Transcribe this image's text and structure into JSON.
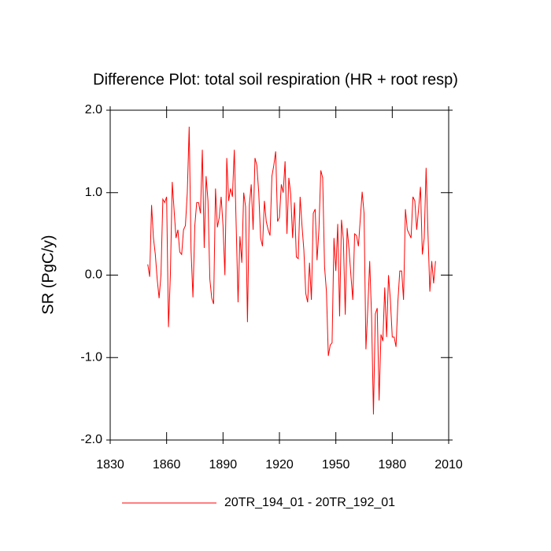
{
  "chart_data": {
    "type": "line",
    "title": "Difference Plot: total soil respiration (HR + root resp)",
    "y_label": "SR  (PgC/y)",
    "x": [
      1850,
      1851,
      1852,
      1853,
      1854,
      1855,
      1856,
      1857,
      1858,
      1859,
      1860,
      1861,
      1862,
      1863,
      1864,
      1865,
      1866,
      1867,
      1868,
      1869,
      1870,
      1871,
      1872,
      1873,
      1874,
      1875,
      1876,
      1877,
      1878,
      1879,
      1880,
      1881,
      1882,
      1883,
      1884,
      1885,
      1886,
      1887,
      1888,
      1889,
      1890,
      1891,
      1892,
      1893,
      1894,
      1895,
      1896,
      1897,
      1898,
      1899,
      1900,
      1901,
      1902,
      1903,
      1904,
      1905,
      1906,
      1907,
      1908,
      1909,
      1910,
      1911,
      1912,
      1913,
      1914,
      1915,
      1916,
      1917,
      1918,
      1919,
      1920,
      1921,
      1922,
      1923,
      1924,
      1925,
      1926,
      1927,
      1928,
      1929,
      1930,
      1931,
      1932,
      1933,
      1934,
      1935,
      1936,
      1937,
      1938,
      1939,
      1940,
      1941,
      1942,
      1943,
      1944,
      1945,
      1946,
      1947,
      1948,
      1949,
      1950,
      1951,
      1952,
      1953,
      1954,
      1955,
      1956,
      1957,
      1958,
      1959,
      1960,
      1961,
      1962,
      1963,
      1964,
      1965,
      1966,
      1967,
      1968,
      1969,
      1970,
      1971,
      1972,
      1973,
      1974,
      1975,
      1976,
      1977,
      1978,
      1979,
      1980,
      1981,
      1982,
      1983,
      1984,
      1985,
      1986,
      1987,
      1988,
      1989,
      1990,
      1991,
      1992,
      1993,
      1994,
      1995,
      1996,
      1997,
      1998,
      1999,
      2000,
      2001,
      2002,
      2003
    ],
    "series": [
      {
        "name": "20TR_194_01 - 20TR_192_01",
        "color": "#ff0000",
        "values": [
          0.13,
          -0.02,
          0.85,
          0.45,
          0.25,
          -0.05,
          -0.28,
          0.0,
          0.92,
          0.88,
          0.95,
          -0.63,
          0.0,
          1.13,
          0.78,
          0.45,
          0.55,
          0.28,
          0.25,
          0.55,
          0.6,
          1.0,
          1.8,
          0.3,
          -0.27,
          0.6,
          0.88,
          0.88,
          0.75,
          1.52,
          0.33,
          1.2,
          0.9,
          -0.05,
          -0.28,
          -0.35,
          1.05,
          0.58,
          0.7,
          0.95,
          0.6,
          0.0,
          1.42,
          0.9,
          1.05,
          0.95,
          1.52,
          0.6,
          -0.33,
          0.47,
          0.15,
          1.0,
          0.83,
          -0.57,
          0.85,
          1.1,
          0.55,
          1.42,
          1.33,
          1.0,
          0.45,
          0.35,
          0.9,
          0.65,
          0.55,
          0.48,
          1.2,
          1.33,
          1.5,
          0.65,
          0.7,
          1.1,
          1.0,
          1.38,
          0.5,
          1.18,
          0.98,
          0.45,
          0.88,
          0.22,
          0.2,
          0.95,
          0.6,
          0.3,
          -0.22,
          -0.33,
          0.15,
          -0.3,
          0.75,
          0.8,
          0.18,
          0.55,
          1.27,
          1.18,
          0.1,
          -0.2,
          -0.98,
          -0.85,
          -0.82,
          0.45,
          0.05,
          0.62,
          -0.5,
          0.67,
          0.43,
          -0.48,
          0.57,
          0.32,
          0.0,
          -0.3,
          0.5,
          0.48,
          0.35,
          0.68,
          1.01,
          0.75,
          -0.9,
          -0.4,
          0.17,
          -0.5,
          -1.69,
          -0.47,
          -0.4,
          -1.52,
          -0.72,
          -0.8,
          -0.15,
          -0.75,
          0.0,
          -0.3,
          -0.75,
          -0.75,
          -0.87,
          -0.32,
          0.05,
          0.05,
          -0.3,
          0.8,
          0.55,
          0.5,
          0.45,
          0.95,
          0.9,
          0.55,
          0.8,
          1.07,
          0.25,
          0.45,
          1.3,
          0.5,
          -0.2,
          0.17,
          -0.1,
          0.17
        ]
      }
    ],
    "xlim": [
      1830,
      2010
    ],
    "xticks": [
      1830,
      1860,
      1890,
      1920,
      1950,
      1980,
      2010
    ],
    "ylim": [
      -2,
      2
    ],
    "yticks": [
      {
        "value": -2,
        "label": "-2.0"
      },
      {
        "value": -1,
        "label": "-1.0"
      },
      {
        "value": 0,
        "label": "0.0"
      },
      {
        "value": 1,
        "label": "1.0"
      },
      {
        "value": 2,
        "label": "2.0"
      }
    ],
    "legend": "bottom"
  }
}
